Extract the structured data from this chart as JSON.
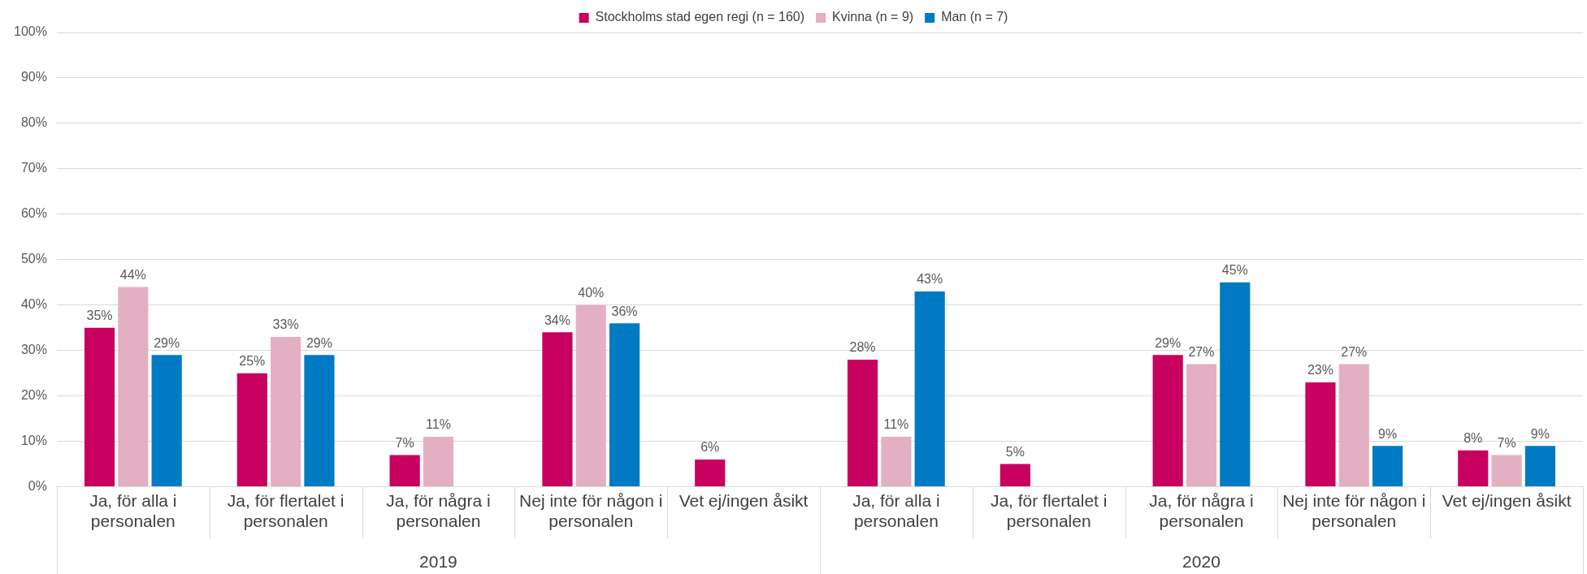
{
  "chart_data": {
    "type": "bar",
    "categories": [
      "Ja, för alla i personalen",
      "Ja, för flertalet i personalen",
      "Ja, för några i personalen",
      "Nej inte för någon i personalen",
      "Vet ej/ingen åsikt",
      "Ja, för alla i personalen",
      "Ja, för flertalet i personalen",
      "Ja, för några i personalen",
      "Nej inte för någon i personalen",
      "Vet ej/ingen åsikt"
    ],
    "series": [
      {
        "name": "Stockholms stad egen regi (n = 160)",
        "color": "#c8005f",
        "values": [
          35,
          25,
          7,
          34,
          6,
          28,
          5,
          29,
          23,
          8
        ],
        "value_labels": [
          "35%",
          "25%",
          "7%",
          "34%",
          "6%",
          "28%",
          "5%",
          "29%",
          "23%",
          "8%"
        ]
      },
      {
        "name": "Kvinna (n = 9)",
        "color": "#e3b0c3",
        "values": [
          44,
          33,
          11,
          40,
          null,
          11,
          null,
          27,
          27,
          7
        ],
        "value_labels": [
          "44%",
          "33%",
          "11%",
          "40%",
          null,
          "11%",
          null,
          "27%",
          "27%",
          "7%"
        ]
      },
      {
        "name": "Man (n = 7)",
        "color": "#007ac2",
        "values": [
          29,
          29,
          null,
          36,
          null,
          43,
          null,
          45,
          9,
          9
        ],
        "value_labels": [
          "29%",
          "29%",
          null,
          "36%",
          null,
          "43%",
          null,
          "45%",
          "9%",
          "9%"
        ]
      }
    ],
    "ylim": [
      0,
      100
    ],
    "yticks": [
      {
        "value": 0,
        "label": "0%"
      },
      {
        "value": 10,
        "label": "10%"
      },
      {
        "value": 20,
        "label": "20%"
      },
      {
        "value": 30,
        "label": "30%"
      },
      {
        "value": 40,
        "label": "40%"
      },
      {
        "value": 50,
        "label": "50%"
      },
      {
        "value": 60,
        "label": "60%"
      },
      {
        "value": 70,
        "label": "70%"
      },
      {
        "value": 80,
        "label": "80%"
      },
      {
        "value": 90,
        "label": "90%"
      },
      {
        "value": 100,
        "label": "100%"
      }
    ],
    "grid": "y",
    "legend": "top",
    "annotations": [
      "2019",
      "2020"
    ]
  }
}
